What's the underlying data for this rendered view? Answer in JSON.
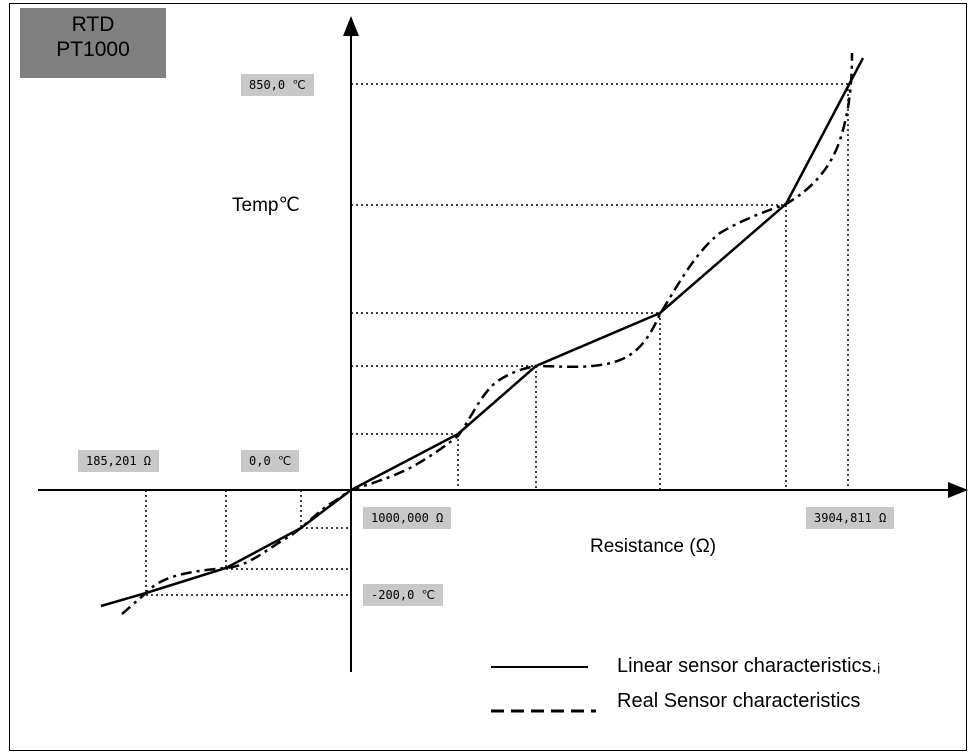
{
  "title": {
    "line1": "RTD",
    "line2": "PT1000"
  },
  "axis": {
    "y_label": "Temp℃",
    "x_label": "Resistance (Ω)"
  },
  "tags": {
    "temp_max": "850,0 ℃",
    "temp_zero": "0,0 ℃",
    "temp_min": "-200,0 ℃",
    "res_min": "185,201 Ω",
    "res_zero": "1000,000 Ω",
    "res_max": "3904,811 Ω"
  },
  "legend": {
    "linear": "Linear sensor characteristics.ᵢ",
    "real": "Real Sensor characteristics"
  }
}
